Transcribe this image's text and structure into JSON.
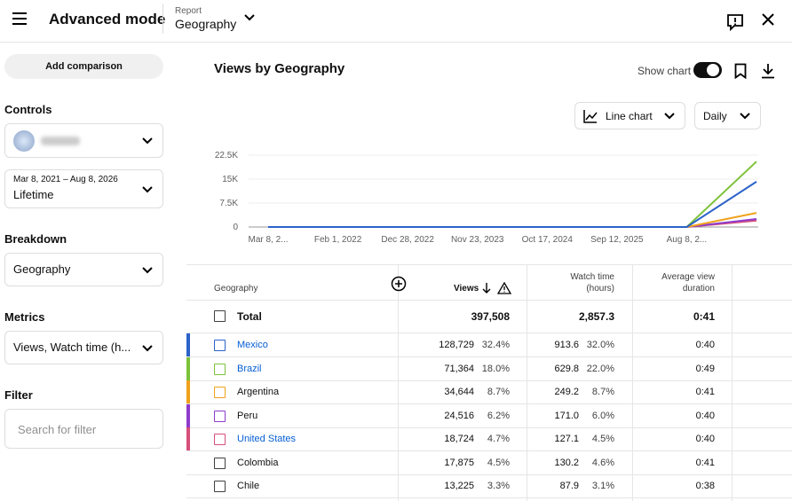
{
  "header": {
    "title": "Advanced mode",
    "report_label": "Report",
    "report_value": "Geography"
  },
  "sidebar": {
    "add_comparison": "Add comparison",
    "controls_label": "Controls",
    "date_range": "Mar 8, 2021 – Aug 8, 2026",
    "date_value": "Lifetime",
    "breakdown_label": "Breakdown",
    "breakdown_value": "Geography",
    "metrics_label": "Metrics",
    "metrics_value": "Views, Watch time (h...",
    "filter_label": "Filter",
    "filter_placeholder": "Search for filter"
  },
  "panel": {
    "title": "Views by Geography",
    "show_chart": "Show chart",
    "chart_type": "Line chart",
    "interval": "Daily"
  },
  "chart_data": {
    "type": "line",
    "x": [
      "Mar 8, 2...",
      "Feb 1, 2022",
      "Dec 28, 2022",
      "Nov 23, 2023",
      "Oct 17, 2024",
      "Sep 12, 2025",
      "Aug 8, 2...",
      null
    ],
    "series": [
      {
        "color": "#2b63c9",
        "values": [
          0,
          0,
          0,
          0,
          0,
          0,
          0,
          14200
        ]
      },
      {
        "color": "#7cc23a",
        "values": [
          0,
          0,
          0,
          0,
          0,
          0,
          0,
          20500
        ]
      },
      {
        "color": "#f0a21c",
        "values": [
          0,
          0,
          0,
          0,
          0,
          0,
          0,
          4400
        ]
      },
      {
        "color": "#8e3ccb",
        "values": [
          0,
          0,
          0,
          0,
          0,
          0,
          0,
          2500
        ]
      },
      {
        "color": "#d64f7a",
        "values": [
          0,
          0,
          0,
          0,
          0,
          0,
          0,
          2000
        ]
      }
    ],
    "ylim": [
      0,
      22500
    ],
    "yticks": [
      0,
      {
        "value": 7500,
        "label": "7.5K"
      },
      {
        "value": 15000,
        "label": "15K"
      },
      {
        "value": 22500,
        "label": "22.5K"
      }
    ],
    "grid": true
  },
  "table": {
    "columns": {
      "geography": "Geography",
      "views": "Views",
      "watch": [
        "Watch time",
        "(hours)"
      ],
      "avg": [
        "Average view",
        "duration"
      ]
    },
    "total": {
      "name": "Total",
      "views": "397,508",
      "watch": "2,857.3",
      "avg": "0:41"
    },
    "rows": [
      {
        "name": "Mexico",
        "link": true,
        "color": "#2b63c9",
        "views": "128,729",
        "views_pct": "32.4%",
        "watch": "913.6",
        "watch_pct": "32.0%",
        "avg": "0:40"
      },
      {
        "name": "Brazil",
        "link": true,
        "color": "#7cc23a",
        "views": "71,364",
        "views_pct": "18.0%",
        "watch": "629.8",
        "watch_pct": "22.0%",
        "avg": "0:49"
      },
      {
        "name": "Argentina",
        "link": false,
        "color": "#f0a21c",
        "views": "34,644",
        "views_pct": "8.7%",
        "watch": "249.2",
        "watch_pct": "8.7%",
        "avg": "0:41"
      },
      {
        "name": "Peru",
        "link": false,
        "color": "#8e3ccb",
        "views": "24,516",
        "views_pct": "6.2%",
        "watch": "171.0",
        "watch_pct": "6.0%",
        "avg": "0:40"
      },
      {
        "name": "United States",
        "link": true,
        "color": "#d64f7a",
        "views": "18,724",
        "views_pct": "4.7%",
        "watch": "127.1",
        "watch_pct": "4.5%",
        "avg": "0:40"
      },
      {
        "name": "Colombia",
        "link": false,
        "views": "17,875",
        "views_pct": "4.5%",
        "watch": "130.2",
        "watch_pct": "4.6%",
        "avg": "0:41"
      },
      {
        "name": "Chile",
        "link": false,
        "views": "13,225",
        "views_pct": "3.3%",
        "watch": "87.9",
        "watch_pct": "3.1%",
        "avg": "0:38"
      }
    ]
  }
}
